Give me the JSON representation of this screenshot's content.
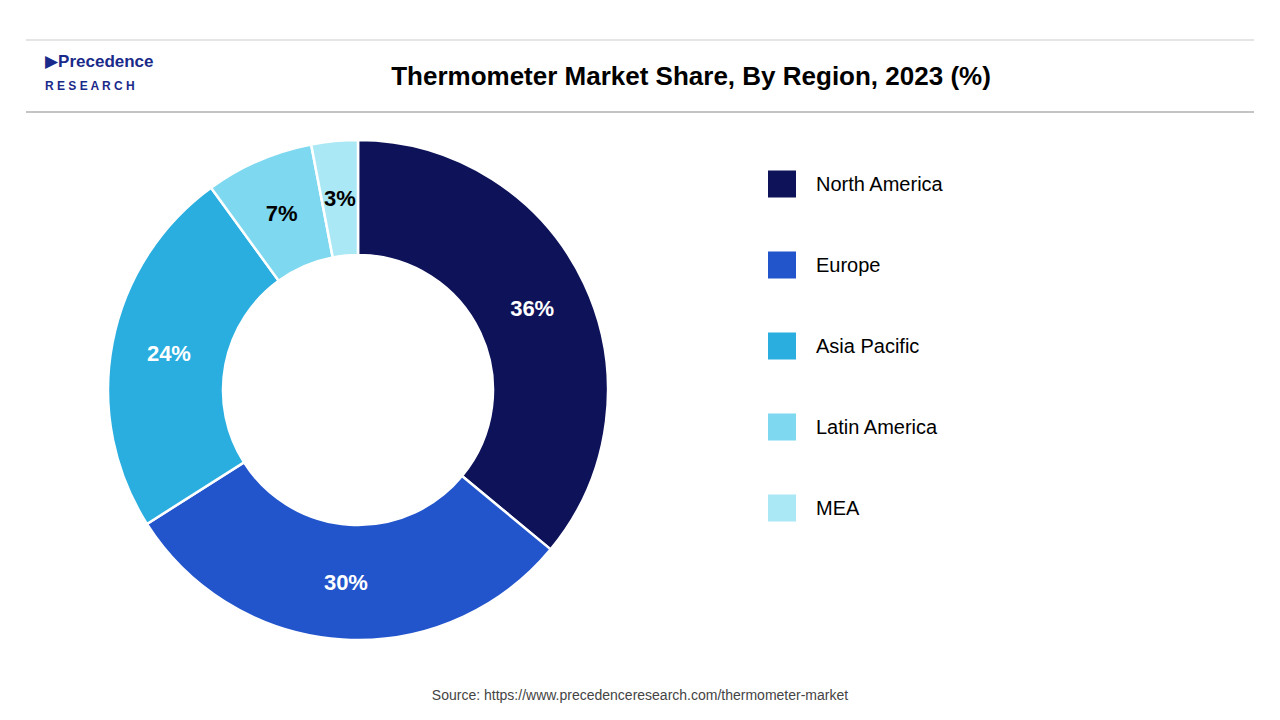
{
  "chart_data": {
    "type": "pie",
    "title": "Thermometer Market Share, By Region, 2023 (%)",
    "categories": [
      "North America",
      "Europe",
      "Asia Pacific",
      "Latin America",
      "MEA"
    ],
    "values": [
      36,
      30,
      24,
      7,
      3
    ],
    "value_labels": [
      "36%",
      "30%",
      "24%",
      "7%",
      "3%"
    ],
    "colors": [
      "#0d1259",
      "#2255cc",
      "#2aaee0",
      "#7dd8f0",
      "#abe8f5"
    ],
    "data_labels": true,
    "legend": "right",
    "annotations": [
      "▶Precedence",
      "R E S E A R C H",
      "Source: https://www.precedenceresearch.com/thermometer-market"
    ]
  }
}
